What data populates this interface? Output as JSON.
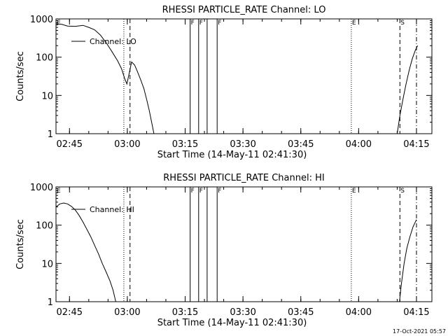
{
  "footer": {
    "timestamp": "17-Oct-2021 05:57"
  },
  "chart_data": [
    {
      "type": "line",
      "title": "RHESSI PARTICLE_RATE Channel: LO",
      "xlabel": "Start Time (14-May-11 02:41:30)",
      "ylabel": "Counts/sec",
      "y_scale": "log",
      "ylim": [
        1,
        1000
      ],
      "xlim_minutes_after_0241_30": [
        0,
        97.5
      ],
      "xticks": [
        {
          "label": "02:45",
          "t": 3.5
        },
        {
          "label": "03:00",
          "t": 18.5
        },
        {
          "label": "03:15",
          "t": 33.5
        },
        {
          "label": "03:30",
          "t": 48.5
        },
        {
          "label": "03:45",
          "t": 63.5
        },
        {
          "label": "04:00",
          "t": 78.5
        },
        {
          "label": "04:15",
          "t": 93.5
        }
      ],
      "yticks": [
        {
          "label": "1",
          "v": 1
        },
        {
          "label": "10",
          "v": 10
        },
        {
          "label": "100",
          "v": 100
        },
        {
          "label": "1000",
          "v": 1000
        }
      ],
      "legend": {
        "label": "Channel: LO",
        "placement": "top-left"
      },
      "markers": [
        {
          "label": "E",
          "t": 0,
          "style": "dotted"
        },
        {
          "label": "",
          "t": 17.6,
          "style": "dotted"
        },
        {
          "label": "",
          "t": 19.2,
          "style": "dashed"
        },
        {
          "label": "F",
          "t": 34.8,
          "style": "solid"
        },
        {
          "label": "F",
          "t": 37.0,
          "style": "solid"
        },
        {
          "label": "",
          "t": 39.2,
          "style": "solid"
        },
        {
          "label": "F",
          "t": 41.8,
          "style": "solid"
        },
        {
          "label": "E",
          "t": 76.6,
          "style": "dotted"
        },
        {
          "label": "S",
          "t": 89.2,
          "style": "dashed"
        },
        {
          "label": "",
          "t": 93.5,
          "style": "dashdot"
        }
      ],
      "series": [
        {
          "name": "Channel: LO",
          "segments": [
            [
              [
                0,
                750
              ],
              [
                1.5,
                720
              ],
              [
                3,
                650
              ],
              [
                5,
                640
              ],
              [
                7,
                680
              ],
              [
                8.5,
                600
              ],
              [
                10,
                520
              ],
              [
                11.5,
                380
              ],
              [
                13,
                240
              ],
              [
                14.5,
                140
              ],
              [
                16,
                80
              ],
              [
                17,
                50
              ],
              [
                17.8,
                28
              ],
              [
                18.4,
                20
              ],
              [
                19,
                38
              ],
              [
                19.6,
                75
              ],
              [
                20.4,
                62
              ],
              [
                21.2,
                40
              ],
              [
                22,
                25
              ],
              [
                22.8,
                15
              ],
              [
                23.5,
                8
              ],
              [
                24.2,
                4
              ],
              [
                24.8,
                2
              ],
              [
                25.4,
                1
              ]
            ],
            [
              [
                88.5,
                1
              ],
              [
                89.2,
                3
              ],
              [
                90,
                8
              ],
              [
                90.8,
                20
              ],
              [
                91.6,
                45
              ],
              [
                92.4,
                90
              ],
              [
                93.2,
                150
              ],
              [
                93.8,
                200
              ]
            ]
          ]
        }
      ]
    },
    {
      "type": "line",
      "title": "RHESSI PARTICLE_RATE Channel: HI",
      "xlabel": "Start Time (14-May-11 02:41:30)",
      "ylabel": "Counts/sec",
      "y_scale": "log",
      "ylim": [
        1,
        1000
      ],
      "xlim_minutes_after_0241_30": [
        0,
        97.5
      ],
      "xticks": [
        {
          "label": "02:45",
          "t": 3.5
        },
        {
          "label": "03:00",
          "t": 18.5
        },
        {
          "label": "03:15",
          "t": 33.5
        },
        {
          "label": "03:30",
          "t": 48.5
        },
        {
          "label": "03:45",
          "t": 63.5
        },
        {
          "label": "04:00",
          "t": 78.5
        },
        {
          "label": "04:15",
          "t": 93.5
        }
      ],
      "yticks": [
        {
          "label": "1",
          "v": 1
        },
        {
          "label": "10",
          "v": 10
        },
        {
          "label": "100",
          "v": 100
        },
        {
          "label": "1000",
          "v": 1000
        }
      ],
      "legend": {
        "label": "Channel: HI",
        "placement": "top-left"
      },
      "markers": [
        {
          "label": "E",
          "t": 0,
          "style": "dotted"
        },
        {
          "label": "",
          "t": 17.6,
          "style": "dotted"
        },
        {
          "label": "",
          "t": 19.2,
          "style": "dashed"
        },
        {
          "label": "F",
          "t": 34.8,
          "style": "solid"
        },
        {
          "label": "F",
          "t": 37.0,
          "style": "solid"
        },
        {
          "label": "",
          "t": 39.2,
          "style": "solid"
        },
        {
          "label": "F",
          "t": 41.8,
          "style": "solid"
        },
        {
          "label": "E",
          "t": 76.6,
          "style": "dotted"
        },
        {
          "label": "S",
          "t": 89.2,
          "style": "dashed"
        },
        {
          "label": "",
          "t": 93.5,
          "style": "dashdot"
        }
      ],
      "series": [
        {
          "name": "Channel: HI",
          "segments": [
            [
              [
                0,
                300
              ],
              [
                1,
                360
              ],
              [
                2,
                380
              ],
              [
                3,
                360
              ],
              [
                4,
                310
              ],
              [
                5,
                250
              ],
              [
                6,
                180
              ],
              [
                7,
                120
              ],
              [
                8,
                78
              ],
              [
                9,
                50
              ],
              [
                10,
                30
              ],
              [
                11,
                18
              ],
              [
                12,
                10
              ],
              [
                13,
                6
              ],
              [
                14,
                3.5
              ],
              [
                14.8,
                2
              ],
              [
                15.5,
                1
              ]
            ],
            [
              [
                89.1,
                1
              ],
              [
                89.6,
                3
              ],
              [
                90.3,
                10
              ],
              [
                91,
                25
              ],
              [
                91.8,
                50
              ],
              [
                92.6,
                90
              ],
              [
                93.5,
                140
              ]
            ]
          ]
        }
      ]
    }
  ]
}
